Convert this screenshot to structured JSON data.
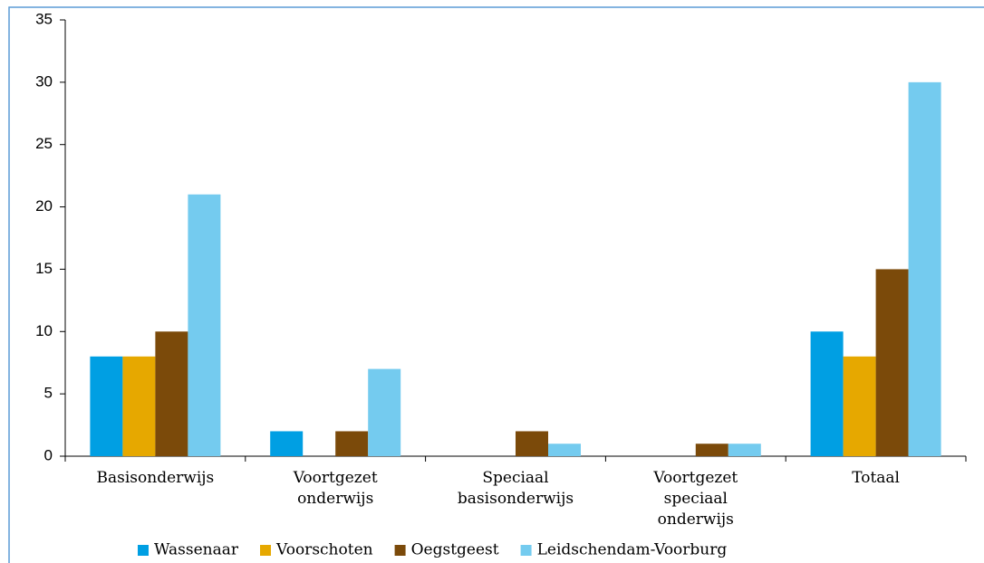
{
  "chart_data": {
    "type": "bar",
    "categories": [
      "Basisonderwijs",
      "Voortgezet onderwijs",
      "Speciaal basisonderwijs",
      "Voortgezet speciaal onderwijs",
      "Totaal"
    ],
    "series": [
      {
        "name": "Wassenaar",
        "color": "#009fe3",
        "values": [
          8,
          2,
          0,
          0,
          10
        ]
      },
      {
        "name": "Voorschoten",
        "color": "#e6a800",
        "values": [
          8,
          0,
          0,
          0,
          8
        ]
      },
      {
        "name": "Oegstgeest",
        "color": "#7b4a0a",
        "values": [
          10,
          2,
          2,
          1,
          15
        ]
      },
      {
        "name": "Leidschendam-Voorburg",
        "color": "#74cbef",
        "values": [
          21,
          7,
          1,
          1,
          30
        ]
      }
    ],
    "ylim": [
      0,
      35
    ],
    "yticks": [
      0,
      5,
      10,
      15,
      20,
      25,
      30,
      35
    ],
    "grid": false,
    "legend": "bottom"
  }
}
